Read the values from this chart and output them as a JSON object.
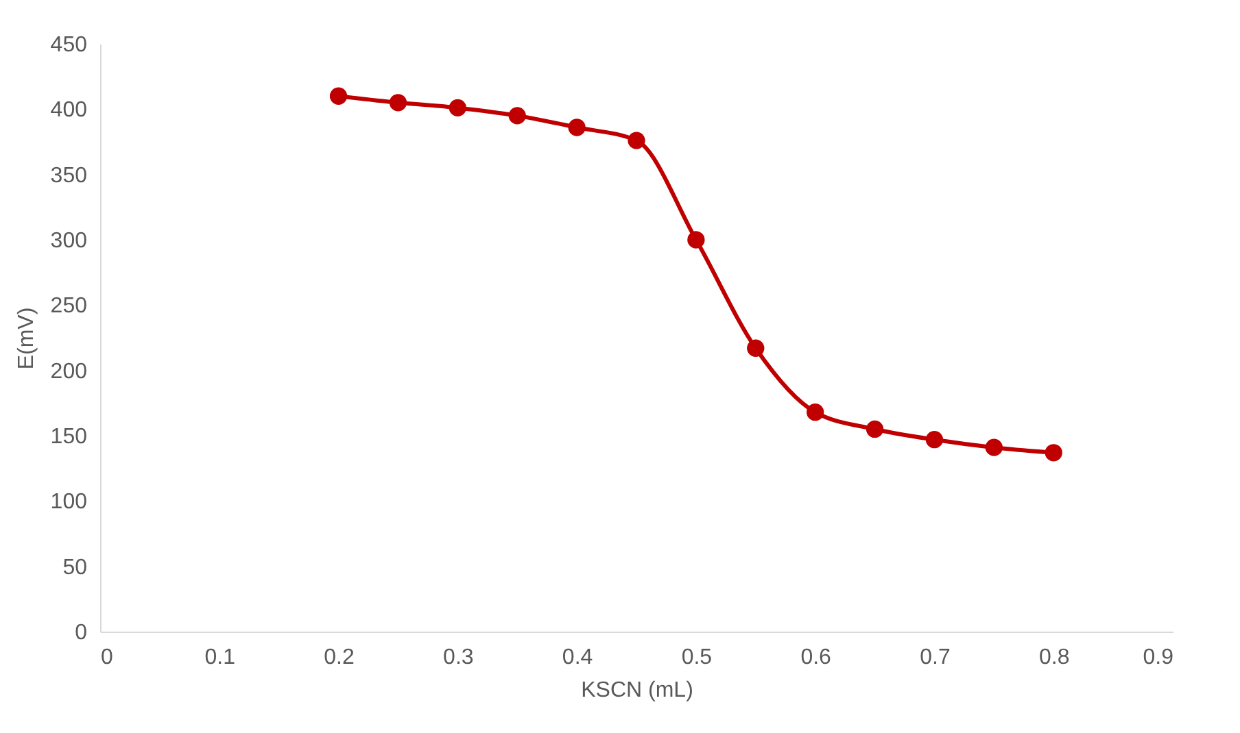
{
  "chart_data": {
    "type": "line",
    "xlabel": "KSCN (mL)",
    "ylabel": "E(mV)",
    "x": [
      0.2,
      0.25,
      0.3,
      0.35,
      0.4,
      0.45,
      0.5,
      0.55,
      0.6,
      0.65,
      0.7,
      0.75,
      0.8
    ],
    "series": [
      {
        "color": "#c00000",
        "values": [
          410,
          405,
          401,
          395,
          386,
          376,
          300,
          217,
          168,
          155,
          147,
          141,
          137
        ]
      }
    ],
    "xlim": [
      0,
      0.9
    ],
    "xticks": [
      0,
      0.1,
      0.2,
      0.3,
      0.4,
      0.5,
      0.6,
      0.7,
      0.8,
      0.9
    ],
    "ylim": [
      0,
      450
    ],
    "yticks": [
      0,
      50,
      100,
      150,
      200,
      250,
      300,
      350,
      400,
      450
    ],
    "grid": false,
    "marker": "circle",
    "line_style": "solid"
  }
}
